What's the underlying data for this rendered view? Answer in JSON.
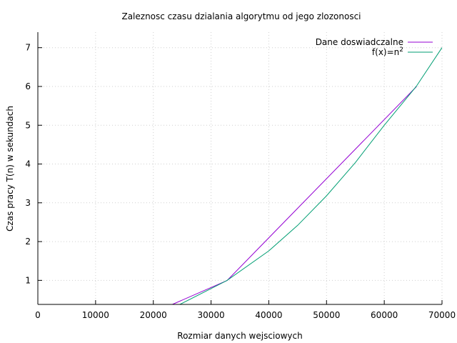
{
  "chart_data": {
    "type": "line",
    "title": "Zaleznosc czasu dzialania algorytmu od jego zlozonosci",
    "xlabel": "Rozmiar danych wejsciowych",
    "ylabel": "Czas pracy T(n) w sekundach",
    "xlim": [
      0,
      70000
    ],
    "ylim": [
      0.38,
      7.4
    ],
    "x_ticks": [
      0,
      10000,
      20000,
      30000,
      40000,
      50000,
      60000,
      70000
    ],
    "y_ticks": [
      1,
      2,
      3,
      4,
      5,
      6,
      7
    ],
    "grid": true,
    "legend_position": "top-right",
    "series": [
      {
        "name": "Dane doswiadczalne",
        "color": "#9400d3",
        "x": [
          23300,
          32800,
          65600
        ],
        "y": [
          0.38,
          1.0,
          6.0
        ]
      },
      {
        "name": "f(x)=n",
        "name_superscript": "2",
        "color": "#009e73",
        "x": [
          24600,
          32768,
          40000,
          45000,
          50000,
          55000,
          60000,
          65536,
          70000
        ],
        "y": [
          0.38,
          1.0,
          1.76,
          2.42,
          3.18,
          4.04,
          5.0,
          6.0,
          7.0
        ]
      }
    ]
  }
}
